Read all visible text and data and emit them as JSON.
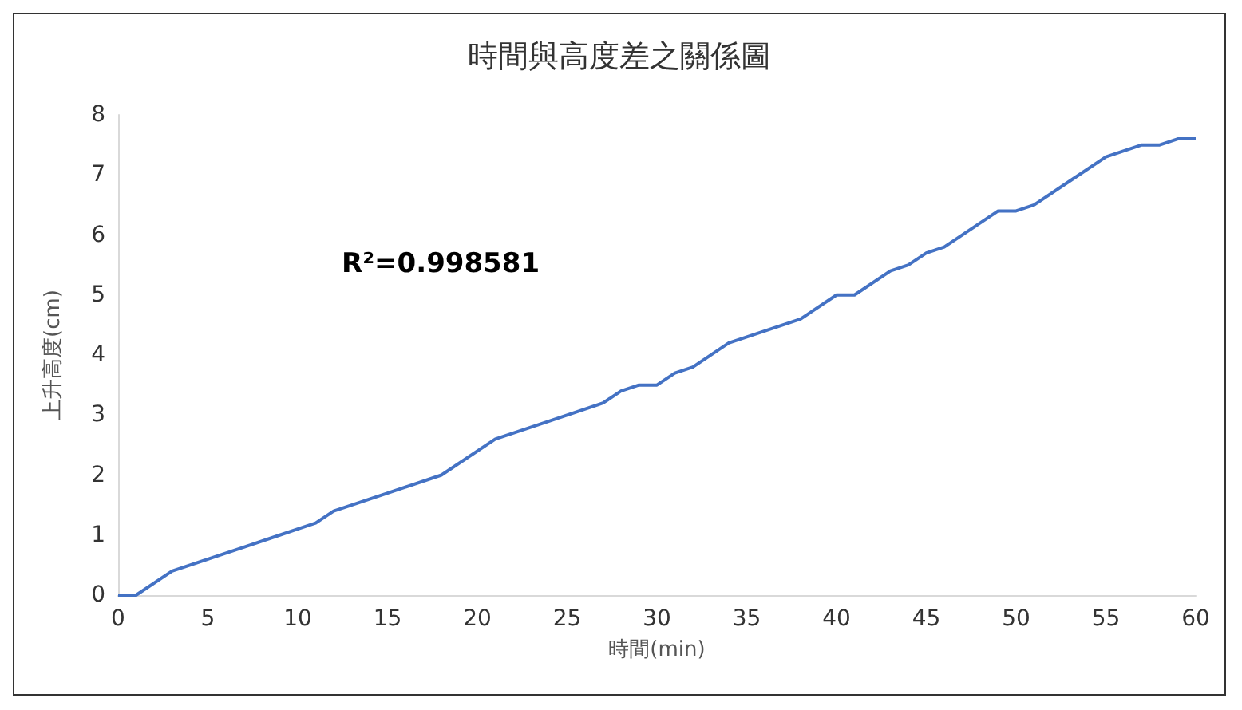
{
  "chart_data": {
    "type": "line",
    "title": "時間與高度差之關係圖",
    "xlabel": "時間(min)",
    "ylabel": "上升高度(cm)",
    "annotations": [
      "R²=0.998581"
    ],
    "x": [
      0,
      1,
      3,
      5,
      7,
      9,
      10,
      11,
      12,
      15,
      18,
      21,
      24,
      27,
      28,
      29,
      30,
      31,
      32,
      34,
      36,
      38,
      40,
      41,
      43,
      44,
      45,
      46,
      49,
      50,
      51,
      53,
      55,
      56,
      57,
      58,
      59,
      60
    ],
    "series": [
      {
        "color": "#4472c4",
        "values": [
          0,
          0,
          0.4,
          0.6,
          0.8,
          1.0,
          1.1,
          1.2,
          1.4,
          1.7,
          2.0,
          2.6,
          2.9,
          3.2,
          3.4,
          3.5,
          3.5,
          3.7,
          3.8,
          4.2,
          4.4,
          4.6,
          5.0,
          5.0,
          5.4,
          5.5,
          5.7,
          5.8,
          6.4,
          6.4,
          6.5,
          6.9,
          7.3,
          7.4,
          7.5,
          7.5,
          7.6,
          7.6
        ]
      }
    ],
    "xlim": [
      0,
      60
    ],
    "xticks": [
      0,
      5,
      10,
      15,
      20,
      25,
      30,
      35,
      40,
      45,
      50,
      55,
      60
    ],
    "ylim": [
      0,
      8
    ],
    "yticks": [
      0,
      1,
      2,
      3,
      4,
      5,
      6,
      7,
      8
    ],
    "grid": false,
    "marker": "none",
    "line_style": "solid"
  }
}
